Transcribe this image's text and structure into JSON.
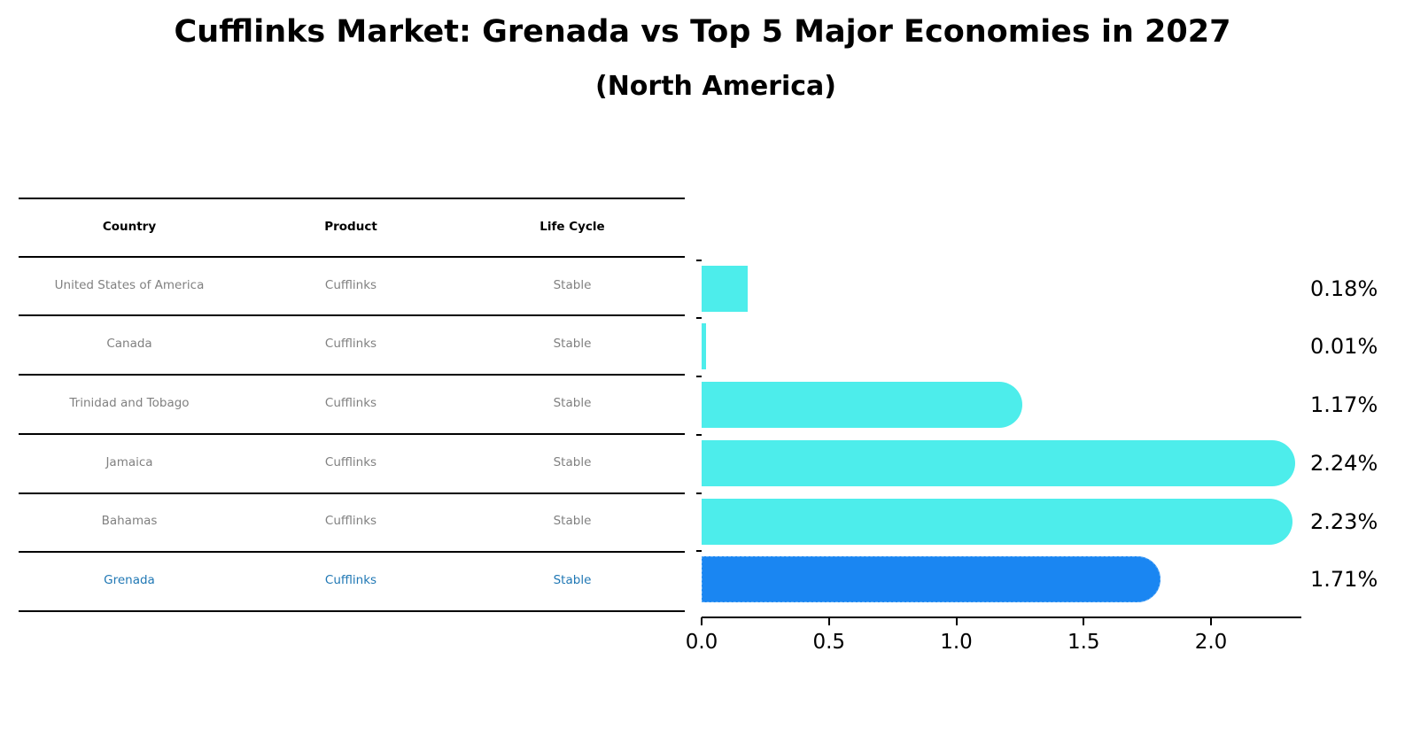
{
  "title": "Cufflinks Market: Grenada vs Top 5 Major Economies in 2027",
  "subtitle": "(North America)",
  "table": {
    "headers": [
      "Country",
      "Product",
      "Life Cycle"
    ],
    "rows": [
      {
        "country": "United States of America",
        "product": "Cufflinks",
        "life_cycle": "Stable"
      },
      {
        "country": "Canada",
        "product": "Cufflinks",
        "life_cycle": "Stable"
      },
      {
        "country": "Trinidad and Tobago",
        "product": "Cufflinks",
        "life_cycle": "Stable"
      },
      {
        "country": "Jamaica",
        "product": "Cufflinks",
        "life_cycle": "Stable"
      },
      {
        "country": "Bahamas",
        "product": "Cufflinks",
        "life_cycle": "Stable"
      },
      {
        "country": "Grenada",
        "product": "Cufflinks",
        "life_cycle": "Stable"
      }
    ],
    "highlight_row": 5,
    "highlight_color": "#1f77b4"
  },
  "colors": {
    "bar": "#4DEDEB",
    "highlight_bar": "#1A86F2"
  },
  "chart_data": {
    "type": "bar",
    "orientation": "horizontal",
    "title": "Cufflinks Market: Grenada vs Top 5 Major Economies in 2027",
    "subtitle": "(North America)",
    "categories": [
      "United States of America",
      "Canada",
      "Trinidad and Tobago",
      "Jamaica",
      "Bahamas",
      "Grenada"
    ],
    "values": [
      0.18,
      0.01,
      1.17,
      2.24,
      2.23,
      1.71
    ],
    "value_labels": [
      "0.18%",
      "0.01%",
      "1.17%",
      "2.24%",
      "2.23%",
      "1.71%"
    ],
    "highlight": "Grenada",
    "xlabel": "",
    "ylabel": "",
    "xticks": [
      "0.0",
      "0.5",
      "1.0",
      "1.5",
      "2.0"
    ],
    "xlim": [
      0,
      2.35
    ],
    "grid": false,
    "legend": null
  }
}
